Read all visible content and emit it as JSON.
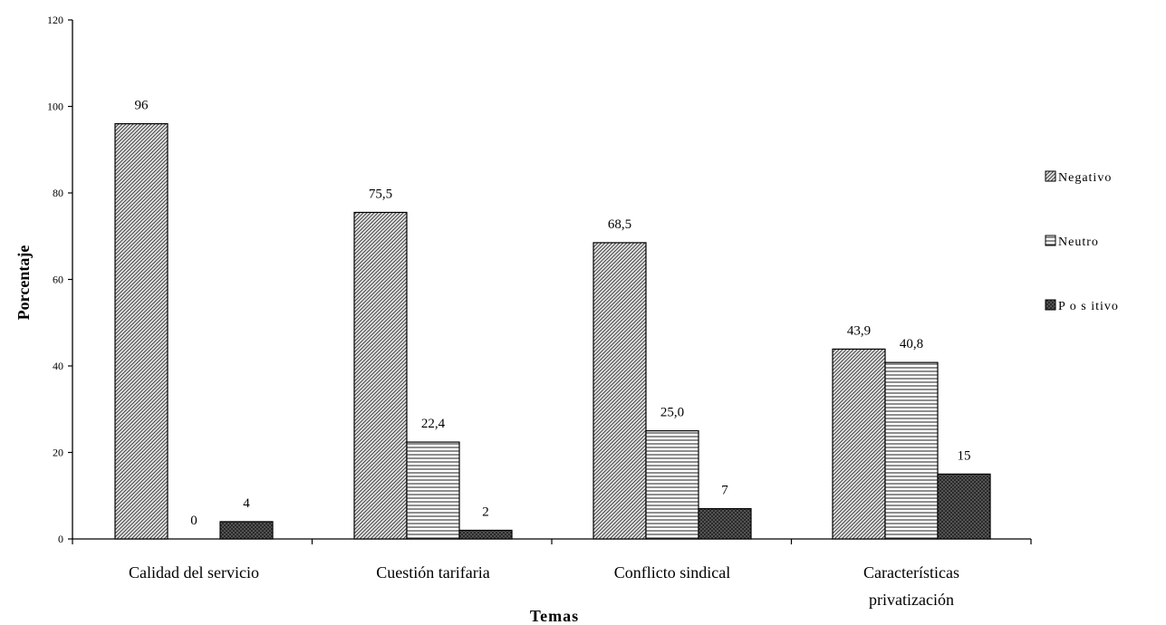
{
  "chart_data": {
    "type": "bar",
    "xlabel": "Temas",
    "ylabel": "Porcentaje",
    "ylim": [
      0,
      120
    ],
    "yticks": [
      "0",
      "20",
      "40",
      "60",
      "80",
      "100",
      "120"
    ],
    "categories": [
      [
        "Calidad del servicio"
      ],
      [
        "Cuestión tarifaria"
      ],
      [
        "Conflicto sindical"
      ],
      [
        "Características",
        "privatización"
      ]
    ],
    "series": [
      {
        "name": "Negativo",
        "pattern": "diagonal",
        "values": [
          96,
          75.5,
          68.5,
          43.9
        ],
        "labels": [
          "96",
          "75,5",
          "68,5",
          "43,9"
        ]
      },
      {
        "name": "Neutro",
        "pattern": "horizontal",
        "values": [
          0,
          22.4,
          25.0,
          40.8
        ],
        "labels": [
          "0",
          "22,4",
          "25,0",
          "40,8"
        ]
      },
      {
        "name": "P o s itivo",
        "pattern": "crosshatch",
        "values": [
          4,
          2,
          7,
          15
        ],
        "labels": [
          "4",
          "2",
          "7",
          "15"
        ]
      }
    ],
    "legend_position": "right",
    "grid": false
  }
}
